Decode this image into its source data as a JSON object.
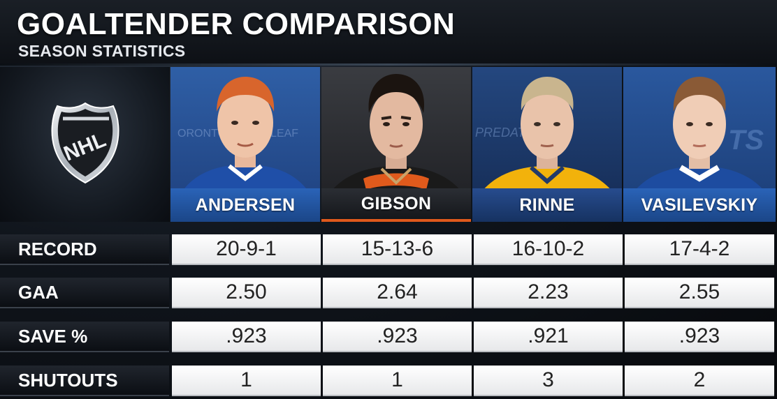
{
  "header": {
    "title": "GOALTENDER COMPARISON",
    "subtitle": "SEASON STATISTICS"
  },
  "logo": {
    "icon": "nhl-shield-logo",
    "text": "NHL"
  },
  "players": [
    {
      "name": "ANDERSEN",
      "jersey_color": "#1f4fa8",
      "bar_color": "#1d4f9e"
    },
    {
      "name": "GIBSON",
      "jersey_color": "#1a1a1a",
      "bar_color": "#23262b"
    },
    {
      "name": "RINNE",
      "jersey_color": "#f2b20b",
      "bar_color": "#1c3f7d"
    },
    {
      "name": "VASILEVSKIY",
      "jersey_color": "#1d4ca0",
      "bar_color": "#1d4f9e"
    }
  ],
  "stats": [
    {
      "label": "RECORD",
      "values": [
        "20-9-1",
        "15-13-6",
        "16-10-2",
        "17-4-2"
      ]
    },
    {
      "label": "GAA",
      "values": [
        "2.50",
        "2.64",
        "2.23",
        "2.55"
      ]
    },
    {
      "label": "SAVE %",
      "values": [
        ".923",
        ".923",
        ".921",
        ".923"
      ]
    },
    {
      "label": "SHUTOUTS",
      "values": [
        "1",
        "1",
        "3",
        "2"
      ]
    }
  ]
}
